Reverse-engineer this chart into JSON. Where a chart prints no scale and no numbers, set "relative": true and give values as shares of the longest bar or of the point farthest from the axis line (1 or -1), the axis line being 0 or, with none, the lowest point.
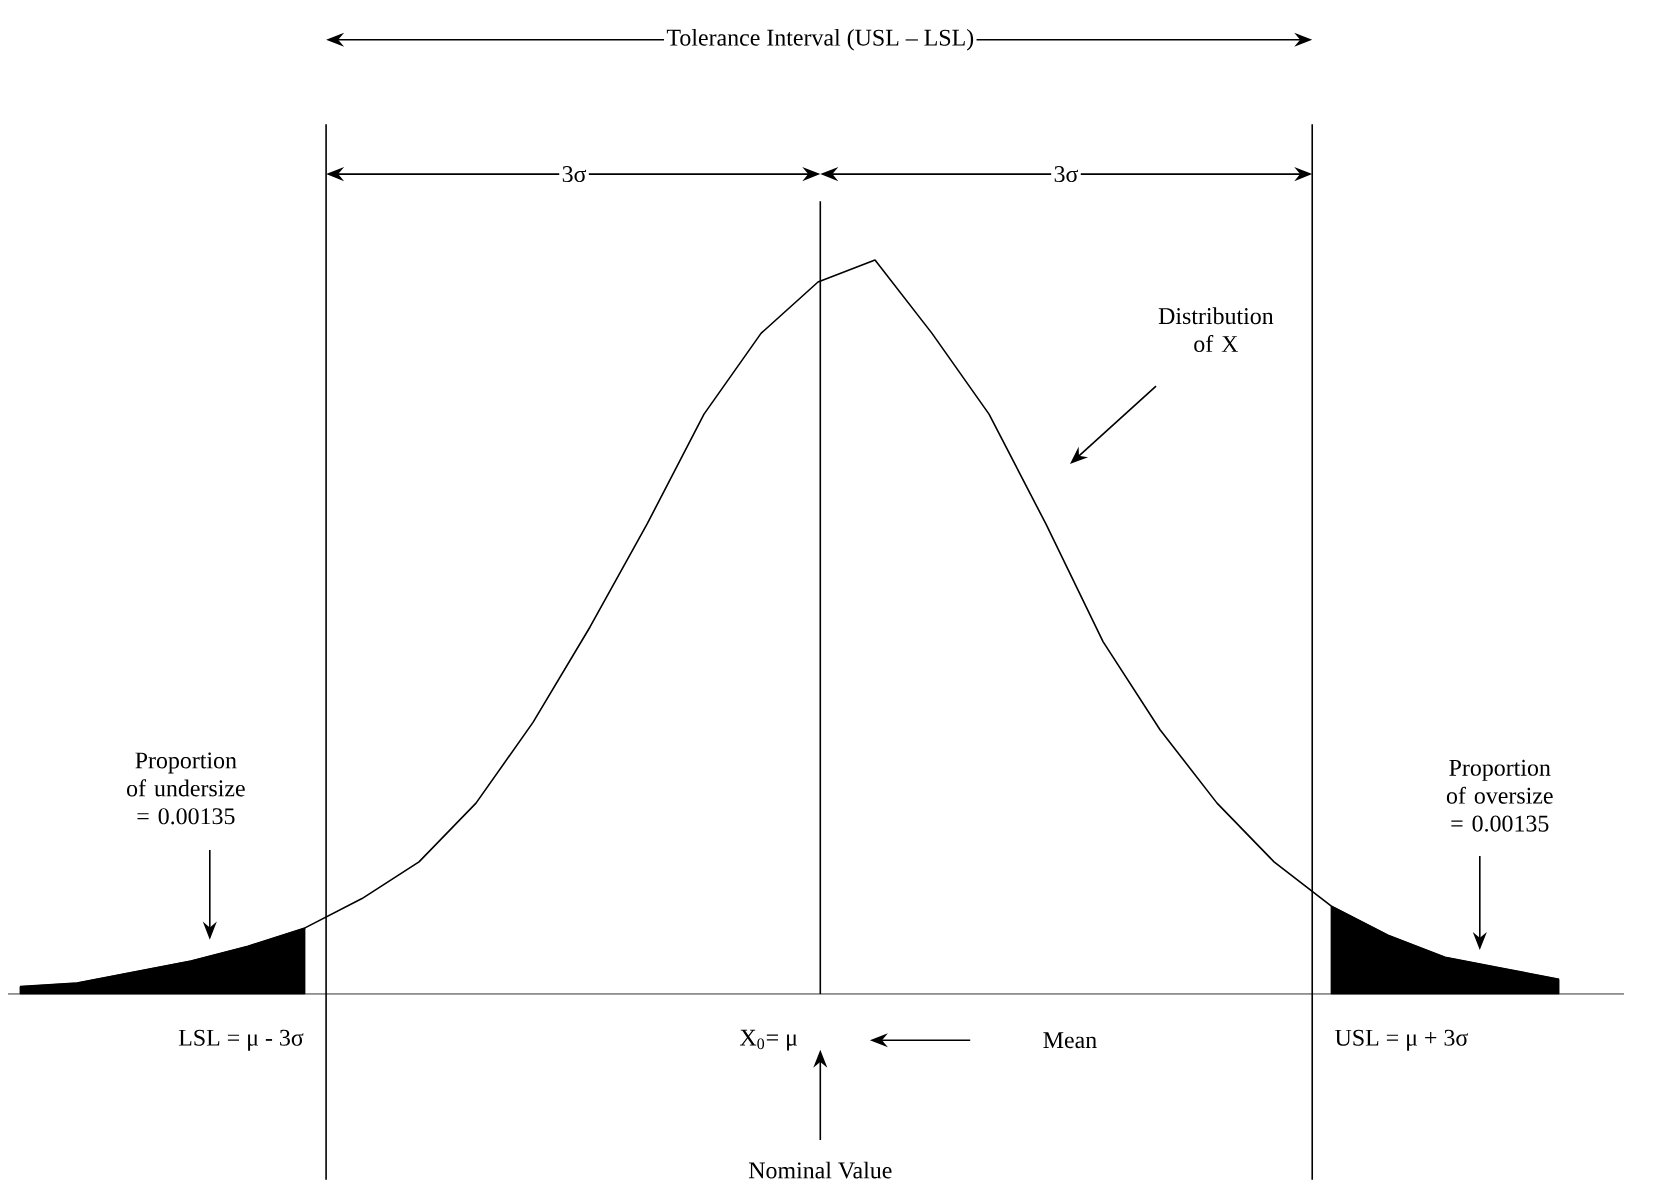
{
  "chart_data": {
    "type": "line",
    "relative": true,
    "categories": [
      null,
      null,
      null,
      null,
      null,
      null,
      null,
      null,
      null,
      null,
      null,
      null,
      null,
      null,
      null,
      null,
      null,
      null,
      null,
      null,
      null,
      null,
      null,
      null,
      null,
      null,
      null,
      null
    ],
    "series": [
      {
        "type": "area",
        "color": "#000000",
        "values": [
          0.01,
          0.015,
          0.03,
          0.045,
          0.065,
          0.09,
          null,
          null,
          null,
          null,
          null,
          null,
          null,
          null,
          null,
          null,
          null,
          null,
          null,
          null,
          null,
          null,
          null,
          null,
          null,
          null,
          null,
          null
        ]
      },
      {
        "type": "area",
        "color": "#000000",
        "values": [
          null,
          null,
          null,
          null,
          null,
          null,
          null,
          null,
          null,
          null,
          null,
          null,
          null,
          null,
          null,
          null,
          null,
          null,
          null,
          null,
          null,
          null,
          null,
          0.12,
          0.08,
          0.05,
          0.035,
          0.02
        ]
      },
      {
        "color": "#000000",
        "values": [
          0.01,
          0.015,
          0.03,
          0.045,
          0.065,
          0.09,
          0.13,
          0.18,
          0.26,
          0.37,
          0.5,
          0.64,
          0.79,
          0.9,
          0.97,
          1.0,
          0.9,
          0.79,
          0.64,
          0.48,
          0.36,
          0.26,
          0.18,
          0.12,
          0.08,
          0.05,
          0.035,
          0.02
        ]
      }
    ],
    "annotations": [
      "Tolerance Interval (USL – LSL)",
      "3σ",
      "3σ",
      "Distribution of X",
      "Proportion of undersize = 0.00135",
      "Proportion of oversize = 0.00135",
      "Mean",
      "Nominal Value",
      "LSL = μ - 3σ",
      "X$_{0}$= μ",
      "USL = μ + 3σ"
    ]
  }
}
